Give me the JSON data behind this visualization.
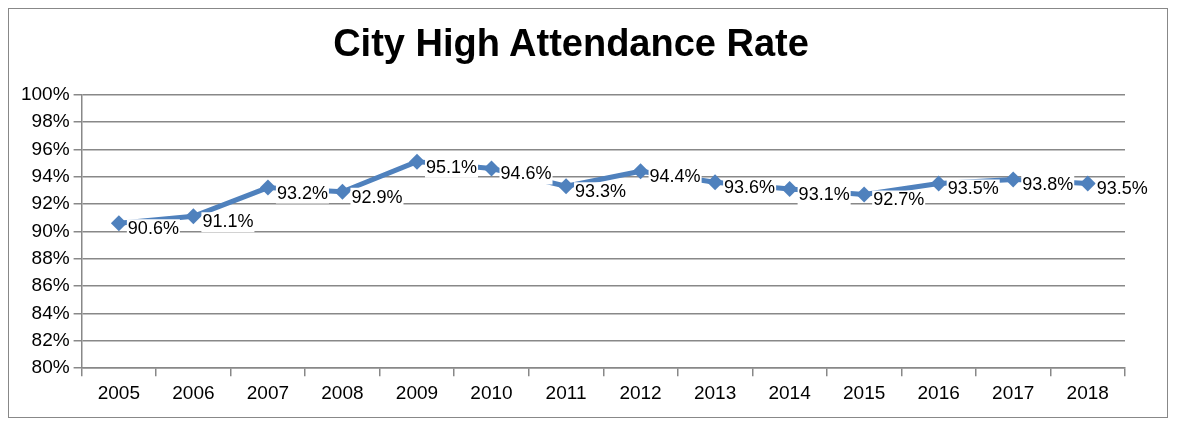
{
  "chart_data": {
    "type": "line",
    "title": "City High Attendance Rate",
    "categories": [
      "2005",
      "2006",
      "2007",
      "2008",
      "2009",
      "2010",
      "2011",
      "2012",
      "2013",
      "2014",
      "2015",
      "2016",
      "2017",
      "2018"
    ],
    "values": [
      90.6,
      91.1,
      93.2,
      92.9,
      95.1,
      94.6,
      93.3,
      94.4,
      93.6,
      93.1,
      92.7,
      93.5,
      93.8,
      93.5
    ],
    "value_labels": [
      "90.6%",
      "91.1%",
      "93.2%",
      "92.9%",
      "95.1%",
      "94.6%",
      "93.3%",
      "94.4%",
      "93.6%",
      "93.1%",
      "92.7%",
      "93.5%",
      "93.8%",
      "93.5%"
    ],
    "color": "#4f81bd",
    "ylim": [
      80,
      100
    ],
    "yticks": [
      {
        "value": 80,
        "label": "80%"
      },
      {
        "value": 82,
        "label": "82%"
      },
      {
        "value": 84,
        "label": "84%"
      },
      {
        "value": 86,
        "label": "86%"
      },
      {
        "value": 88,
        "label": "88%"
      },
      {
        "value": 90,
        "label": "90%"
      },
      {
        "value": 92,
        "label": "92%"
      },
      {
        "value": 94,
        "label": "94%"
      },
      {
        "value": 96,
        "label": "96%"
      },
      {
        "value": 98,
        "label": "98%"
      },
      {
        "value": 100,
        "label": "100%"
      }
    ],
    "grid": "y",
    "legend": false,
    "marker": "diamond",
    "line_style": "solid"
  }
}
